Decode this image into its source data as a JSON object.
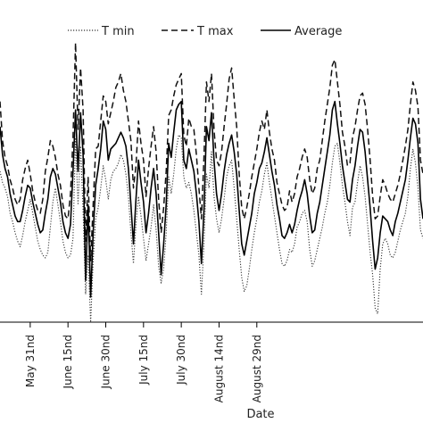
{
  "chart_data": {
    "type": "line",
    "title": "",
    "xlabel": "Date",
    "ylabel": "",
    "grid": false,
    "legend_placement": "top",
    "x_tick_labels": [
      "May 31nd",
      "June 15nd",
      "June 30nd",
      "July 15nd",
      "July 30nd",
      "August 14nd",
      "August 29nd"
    ],
    "x_tick_days": [
      31,
      46,
      61,
      76,
      91,
      106,
      121
    ],
    "x_start_day": 19,
    "ylim": [
      0,
      10
    ],
    "series": [
      {
        "name": "T min",
        "style": "dotted",
        "color": "#333333",
        "values": [
          5.4,
          5.0,
          4.8,
          4.5,
          3.9,
          3.6,
          3.2,
          2.9,
          2.7,
          3.1,
          3.6,
          4.0,
          4.4,
          3.9,
          3.4,
          2.9,
          2.6,
          2.4,
          2.3,
          2.5,
          3.4,
          4.3,
          4.8,
          4.2,
          3.6,
          2.9,
          2.5,
          2.3,
          2.4,
          3.0,
          6.6,
          4.2,
          6.3,
          4.0,
          1.0,
          2.4,
          0.0,
          2.2,
          3.7,
          4.1,
          4.8,
          5.6,
          5.1,
          4.4,
          5.1,
          5.4,
          5.5,
          5.7,
          6.0,
          5.8,
          5.3,
          4.5,
          3.2,
          2.1,
          3.5,
          4.5,
          3.8,
          3.0,
          2.2,
          2.8,
          3.4,
          4.2,
          3.3,
          2.0,
          1.4,
          1.9,
          3.2,
          5.2,
          4.6,
          5.3,
          6.2,
          6.7,
          6.6,
          5.2,
          4.8,
          5.0,
          4.6,
          4.0,
          3.2,
          2.4,
          1.0,
          2.8,
          5.3,
          4.8,
          6.1,
          4.5,
          3.7,
          3.2,
          3.7,
          4.4,
          5.2,
          5.6,
          5.8,
          4.8,
          3.7,
          2.6,
          1.6,
          1.1,
          1.3,
          1.9,
          2.6,
          3.2,
          3.7,
          4.3,
          4.7,
          5.3,
          5.7,
          5.0,
          4.4,
          3.8,
          3.2,
          2.6,
          2.1,
          2.0,
          2.2,
          2.6,
          2.5,
          2.8,
          3.4,
          3.6,
          3.9,
          4.0,
          3.6,
          2.6,
          2.0,
          2.2,
          2.6,
          3.0,
          3.4,
          3.9,
          4.3,
          4.9,
          5.7,
          6.3,
          6.4,
          5.7,
          4.9,
          4.3,
          3.6,
          3.1,
          4.1,
          4.3,
          5.0,
          5.6,
          5.2,
          4.5,
          3.5,
          2.5,
          1.7,
          0.5,
          0.3,
          1.9,
          2.8,
          3.0,
          2.8,
          2.4,
          2.3,
          2.5,
          2.9,
          3.3,
          3.6,
          3.9,
          4.5,
          5.5,
          6.2,
          5.7,
          4.8,
          3.3,
          3.0
        ]
      },
      {
        "name": "T max",
        "style": "dashed",
        "color": "#111111",
        "values": [
          7.9,
          6.5,
          5.9,
          5.6,
          5.1,
          4.8,
          4.4,
          4.2,
          4.4,
          5.1,
          5.5,
          5.8,
          5.3,
          4.7,
          4.3,
          4.0,
          3.9,
          4.4,
          5.4,
          5.9,
          6.5,
          6.3,
          5.9,
          5.3,
          4.9,
          4.2,
          3.8,
          3.7,
          4.6,
          6.6,
          10.0,
          6.9,
          9.1,
          7.6,
          2.9,
          5.2,
          2.2,
          4.2,
          6.2,
          6.3,
          7.2,
          8.1,
          7.9,
          7.1,
          7.5,
          7.9,
          8.4,
          8.6,
          8.9,
          8.3,
          7.9,
          7.2,
          6.5,
          4.8,
          5.6,
          7.2,
          6.4,
          5.8,
          4.5,
          5.5,
          6.3,
          7.0,
          6.1,
          4.4,
          3.2,
          4.1,
          5.4,
          7.4,
          7.6,
          8.1,
          8.5,
          8.7,
          8.9,
          6.7,
          6.3,
          7.3,
          7.0,
          6.9,
          6.0,
          4.8,
          3.7,
          5.9,
          8.6,
          7.9,
          8.9,
          6.9,
          5.8,
          5.6,
          6.1,
          7.0,
          7.8,
          8.7,
          9.1,
          8.0,
          7.0,
          5.3,
          4.1,
          3.7,
          4.1,
          4.6,
          5.2,
          5.7,
          6.2,
          6.8,
          7.2,
          6.9,
          7.6,
          6.8,
          6.2,
          5.8,
          5.0,
          4.6,
          4.2,
          4.0,
          4.1,
          4.7,
          4.3,
          4.6,
          5.2,
          5.5,
          5.9,
          6.2,
          5.9,
          5.1,
          4.6,
          4.8,
          5.5,
          5.8,
          6.5,
          7.2,
          7.8,
          8.4,
          9.2,
          9.4,
          8.6,
          7.8,
          6.8,
          6.3,
          5.6,
          5.7,
          6.6,
          7.0,
          7.6,
          8.1,
          8.2,
          7.8,
          6.9,
          5.8,
          4.5,
          3.7,
          3.8,
          4.5,
          5.1,
          4.9,
          4.6,
          4.4,
          4.3,
          4.6,
          4.9,
          5.3,
          5.8,
          6.3,
          6.9,
          7.8,
          8.6,
          8.3,
          7.7,
          5.8,
          5.3
        ]
      },
      {
        "name": "Average",
        "style": "solid",
        "color": "#000000",
        "values": [
          7.0,
          6.0,
          5.5,
          5.2,
          4.6,
          4.2,
          3.8,
          3.6,
          3.6,
          4.0,
          4.5,
          4.9,
          4.8,
          4.3,
          3.9,
          3.5,
          3.2,
          3.3,
          3.9,
          4.4,
          5.2,
          5.5,
          5.3,
          4.8,
          4.3,
          3.6,
          3.2,
          3.0,
          3.5,
          5.4,
          7.6,
          5.4,
          7.5,
          6.0,
          1.5,
          4.2,
          0.9,
          3.2,
          4.9,
          5.5,
          6.2,
          7.2,
          6.9,
          5.8,
          6.2,
          6.3,
          6.4,
          6.6,
          6.8,
          6.6,
          6.3,
          5.5,
          4.2,
          2.8,
          4.4,
          5.8,
          5.0,
          4.3,
          3.2,
          3.9,
          4.8,
          5.5,
          4.6,
          3.2,
          1.7,
          2.8,
          4.2,
          6.4,
          5.9,
          6.8,
          7.6,
          7.8,
          7.9,
          5.8,
          5.5,
          6.2,
          5.8,
          5.4,
          4.6,
          3.6,
          2.1,
          4.0,
          7.0,
          6.5,
          7.5,
          5.8,
          4.6,
          4.0,
          4.6,
          5.4,
          6.0,
          6.4,
          6.7,
          6.1,
          5.3,
          4.0,
          2.8,
          2.4,
          2.9,
          3.4,
          3.9,
          4.6,
          5.0,
          5.5,
          5.7,
          6.1,
          6.6,
          6.0,
          5.4,
          4.9,
          4.2,
          3.7,
          3.1,
          3.0,
          3.2,
          3.5,
          3.2,
          3.5,
          4.0,
          4.4,
          4.7,
          5.1,
          4.6,
          3.8,
          3.2,
          3.3,
          3.9,
          4.3,
          4.9,
          5.5,
          6.1,
          6.7,
          7.6,
          7.9,
          7.1,
          6.4,
          5.6,
          5.0,
          4.4,
          4.3,
          5.1,
          5.6,
          6.3,
          6.9,
          6.8,
          6.1,
          5.1,
          4.1,
          2.9,
          1.9,
          2.3,
          3.2,
          3.8,
          3.7,
          3.6,
          3.3,
          3.1,
          3.6,
          3.9,
          4.3,
          4.7,
          5.1,
          5.8,
          6.6,
          7.3,
          7.1,
          6.4,
          4.4,
          3.7
        ]
      }
    ]
  }
}
